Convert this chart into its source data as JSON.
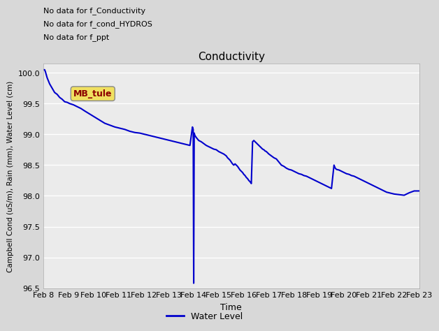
{
  "title": "Conductivity",
  "xlabel": "Time",
  "ylabel": "Campbell Cond (uS/m), Rain (mm), Water Level (cm)",
  "ylim": [
    96.5,
    100.15
  ],
  "yticks": [
    96.5,
    97.0,
    97.5,
    98.0,
    98.5,
    99.0,
    99.5,
    100.0
  ],
  "bg_color": "#d8d8d8",
  "plot_bg_color": "#ebebeb",
  "line_color": "#0000cc",
  "annotations": [
    "No data for f_Conductivity",
    "No data for f_cond_HYDROS",
    "No data for f_ppt"
  ],
  "legend_label": "Water Level",
  "annotation_box_label": "MB_tule",
  "x_tick_labels": [
    "Feb 8",
    "Feb 9",
    "Feb 10",
    "Feb 11",
    "Feb 12",
    "Feb 13",
    "Feb 14",
    "Feb 15",
    "Feb 16",
    "Feb 17",
    "Feb 18",
    "Feb 19",
    "Feb 20",
    "Feb 21",
    "Feb 22",
    "Feb 23"
  ],
  "water_level_data": [
    [
      0.0,
      100.05
    ],
    [
      0.05,
      100.05
    ],
    [
      0.08,
      100.02
    ],
    [
      0.15,
      99.92
    ],
    [
      0.25,
      99.82
    ],
    [
      0.35,
      99.75
    ],
    [
      0.45,
      99.68
    ],
    [
      0.55,
      99.65
    ],
    [
      0.65,
      99.6
    ],
    [
      0.75,
      99.57
    ],
    [
      0.85,
      99.53
    ],
    [
      0.95,
      99.52
    ],
    [
      1.05,
      99.5
    ],
    [
      1.2,
      99.48
    ],
    [
      1.35,
      99.45
    ],
    [
      1.5,
      99.42
    ],
    [
      1.65,
      99.38
    ],
    [
      1.85,
      99.33
    ],
    [
      2.05,
      99.28
    ],
    [
      2.25,
      99.23
    ],
    [
      2.45,
      99.18
    ],
    [
      2.65,
      99.15
    ],
    [
      2.85,
      99.12
    ],
    [
      3.05,
      99.1
    ],
    [
      3.25,
      99.08
    ],
    [
      3.45,
      99.05
    ],
    [
      3.65,
      99.03
    ],
    [
      3.85,
      99.02
    ],
    [
      4.05,
      99.0
    ],
    [
      4.25,
      98.98
    ],
    [
      4.45,
      98.96
    ],
    [
      4.65,
      98.94
    ],
    [
      4.85,
      98.92
    ],
    [
      5.05,
      98.9
    ],
    [
      5.25,
      98.88
    ],
    [
      5.45,
      98.86
    ],
    [
      5.65,
      98.84
    ],
    [
      5.85,
      98.82
    ],
    [
      5.95,
      99.12
    ],
    [
      5.98,
      99.08
    ],
    [
      6.0,
      96.58
    ],
    [
      6.02,
      99.02
    ],
    [
      6.05,
      98.98
    ],
    [
      6.1,
      98.95
    ],
    [
      6.2,
      98.9
    ],
    [
      6.3,
      98.88
    ],
    [
      6.4,
      98.85
    ],
    [
      6.5,
      98.82
    ],
    [
      6.6,
      98.8
    ],
    [
      6.7,
      98.78
    ],
    [
      6.8,
      98.76
    ],
    [
      6.9,
      98.75
    ],
    [
      7.0,
      98.72
    ],
    [
      7.1,
      98.7
    ],
    [
      7.2,
      98.68
    ],
    [
      7.3,
      98.65
    ],
    [
      7.35,
      98.62
    ],
    [
      7.4,
      98.6
    ],
    [
      7.45,
      98.58
    ],
    [
      7.5,
      98.55
    ],
    [
      7.55,
      98.52
    ],
    [
      7.6,
      98.5
    ],
    [
      7.65,
      98.52
    ],
    [
      7.7,
      98.5
    ],
    [
      7.75,
      98.48
    ],
    [
      7.8,
      98.45
    ],
    [
      7.85,
      98.42
    ],
    [
      7.9,
      98.4
    ],
    [
      7.95,
      98.38
    ],
    [
      8.0,
      98.35
    ],
    [
      8.05,
      98.33
    ],
    [
      8.1,
      98.3
    ],
    [
      8.15,
      98.28
    ],
    [
      8.2,
      98.25
    ],
    [
      8.25,
      98.23
    ],
    [
      8.3,
      98.2
    ],
    [
      8.35,
      98.88
    ],
    [
      8.4,
      98.9
    ],
    [
      8.45,
      98.88
    ],
    [
      8.5,
      98.86
    ],
    [
      8.55,
      98.84
    ],
    [
      8.6,
      98.82
    ],
    [
      8.65,
      98.8
    ],
    [
      8.7,
      98.78
    ],
    [
      8.75,
      98.76
    ],
    [
      8.8,
      98.75
    ],
    [
      8.85,
      98.73
    ],
    [
      8.9,
      98.72
    ],
    [
      8.95,
      98.7
    ],
    [
      9.0,
      98.68
    ],
    [
      9.1,
      98.65
    ],
    [
      9.2,
      98.62
    ],
    [
      9.3,
      98.6
    ],
    [
      9.4,
      98.55
    ],
    [
      9.5,
      98.5
    ],
    [
      9.6,
      98.48
    ],
    [
      9.7,
      98.45
    ],
    [
      9.8,
      98.43
    ],
    [
      9.9,
      98.42
    ],
    [
      10.0,
      98.4
    ],
    [
      10.1,
      98.38
    ],
    [
      10.2,
      98.36
    ],
    [
      10.3,
      98.35
    ],
    [
      10.4,
      98.33
    ],
    [
      10.5,
      98.32
    ],
    [
      10.6,
      98.3
    ],
    [
      10.7,
      98.28
    ],
    [
      10.8,
      98.26
    ],
    [
      10.9,
      98.24
    ],
    [
      11.0,
      98.22
    ],
    [
      11.1,
      98.2
    ],
    [
      11.2,
      98.18
    ],
    [
      11.3,
      98.16
    ],
    [
      11.4,
      98.14
    ],
    [
      11.5,
      98.12
    ],
    [
      11.6,
      98.5
    ],
    [
      11.65,
      98.45
    ],
    [
      11.7,
      98.43
    ],
    [
      11.8,
      98.42
    ],
    [
      11.9,
      98.4
    ],
    [
      12.0,
      98.38
    ],
    [
      12.1,
      98.36
    ],
    [
      12.2,
      98.35
    ],
    [
      12.3,
      98.33
    ],
    [
      12.4,
      98.32
    ],
    [
      12.5,
      98.3
    ],
    [
      12.6,
      98.28
    ],
    [
      12.7,
      98.26
    ],
    [
      12.8,
      98.24
    ],
    [
      12.9,
      98.22
    ],
    [
      13.0,
      98.2
    ],
    [
      13.1,
      98.18
    ],
    [
      13.2,
      98.16
    ],
    [
      13.3,
      98.14
    ],
    [
      13.4,
      98.12
    ],
    [
      13.5,
      98.1
    ],
    [
      13.6,
      98.08
    ],
    [
      13.7,
      98.06
    ],
    [
      13.8,
      98.05
    ],
    [
      13.9,
      98.04
    ],
    [
      14.0,
      98.03
    ],
    [
      14.2,
      98.02
    ],
    [
      14.4,
      98.01
    ],
    [
      14.6,
      98.05
    ],
    [
      14.8,
      98.08
    ],
    [
      15.0,
      98.08
    ]
  ]
}
